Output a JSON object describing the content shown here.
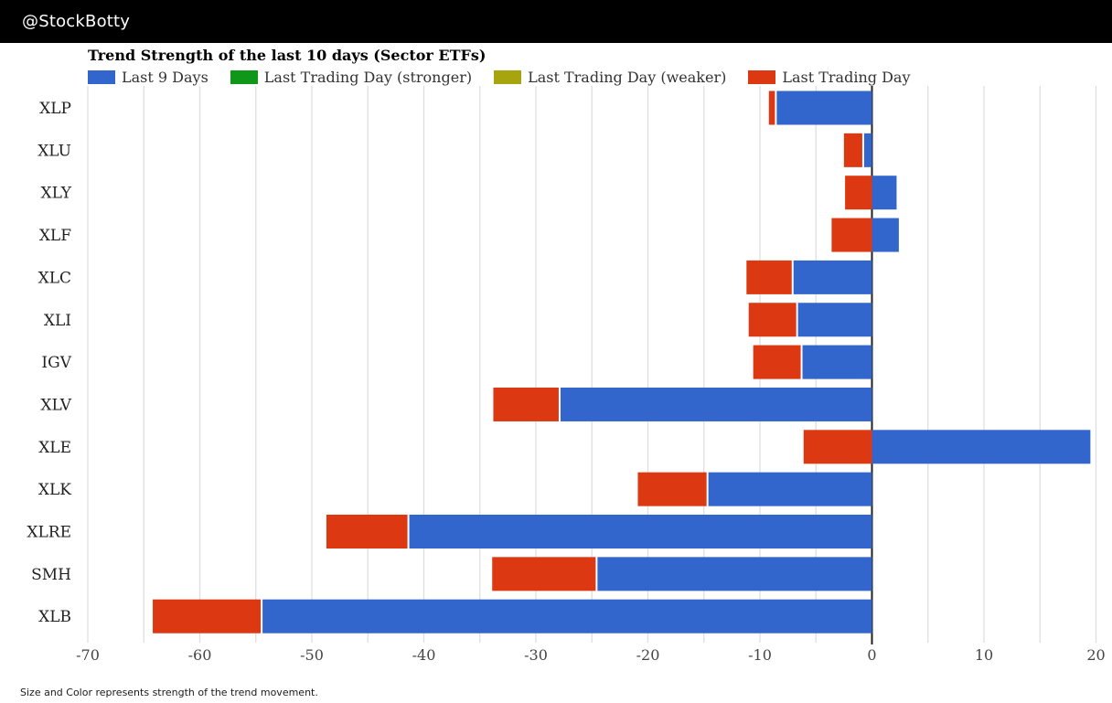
{
  "header": {
    "handle": "@StockBotty",
    "bg_color": "#000000",
    "text_color": "#ffffff"
  },
  "chart_data": {
    "type": "bar",
    "orientation": "horizontal",
    "title": "Trend Strength of the last 10 days (Sector ETFs)",
    "footnote": "Size and Color represents strength of the trend movement.",
    "xlim": [
      -70,
      20
    ],
    "x_tick_labels": [
      -70,
      -60,
      -50,
      -40,
      -30,
      -20,
      -10,
      0,
      10,
      20
    ],
    "gridline_step": 5,
    "grid_on": true,
    "legend_position": "top",
    "legend": [
      {
        "name": "last9",
        "label": "Last 9 Days",
        "color": "#3366cc"
      },
      {
        "name": "stronger",
        "label": "Last Trading Day (stronger)",
        "color": "#109618"
      },
      {
        "name": "weaker",
        "label": "Last Trading Day (weaker)",
        "color": "#a8a40e"
      },
      {
        "name": "lastday",
        "label": "Last Trading Day",
        "color": "#dc3912"
      }
    ],
    "categories": [
      "XLP",
      "XLU",
      "XLY",
      "XLF",
      "XLC",
      "XLI",
      "IGV",
      "XLV",
      "XLE",
      "XLK",
      "XLRE",
      "SMH",
      "XLB"
    ],
    "series": [
      {
        "label": "XLP",
        "last9": [
          -8.5,
          0
        ],
        "last_day": [
          -9.2,
          -8.5
        ]
      },
      {
        "label": "XLU",
        "last9": [
          -0.7,
          0
        ],
        "last_day": [
          -2.5,
          -0.7
        ]
      },
      {
        "label": "XLY",
        "last9": [
          0,
          2.2
        ],
        "last_day": [
          -2.4,
          0
        ]
      },
      {
        "label": "XLF",
        "last9": [
          0,
          2.4
        ],
        "last_day": [
          -3.6,
          0
        ]
      },
      {
        "label": "XLC",
        "last9": [
          -7.0,
          0
        ],
        "last_day": [
          -11.2,
          -7.0
        ]
      },
      {
        "label": "XLI",
        "last9": [
          -6.6,
          0
        ],
        "last_day": [
          -11.0,
          -6.6
        ]
      },
      {
        "label": "IGV",
        "last9": [
          -6.2,
          0
        ],
        "last_day": [
          -10.6,
          -6.2
        ]
      },
      {
        "label": "XLV",
        "last9": [
          -27.8,
          0
        ],
        "last_day": [
          -33.8,
          -27.8
        ]
      },
      {
        "label": "XLE",
        "last9": [
          0,
          19.5
        ],
        "last_day": [
          -6.1,
          0
        ]
      },
      {
        "label": "XLK",
        "last9": [
          -14.6,
          0
        ],
        "last_day": [
          -20.9,
          -14.6
        ]
      },
      {
        "label": "XLRE",
        "last9": [
          -41.3,
          0
        ],
        "last_day": [
          -48.7,
          -41.3
        ]
      },
      {
        "label": "SMH",
        "last9": [
          -24.5,
          0
        ],
        "last_day": [
          -33.9,
          -24.5
        ]
      },
      {
        "label": "XLB",
        "last9": [
          -54.4,
          0
        ],
        "last_day": [
          -64.2,
          -54.4
        ]
      }
    ],
    "colors": {
      "bar_blue": "#3366cc",
      "bar_red": "#dc3912",
      "grid": "#dedede",
      "zero_line": "#212121",
      "x_tick_text": "#454545",
      "y_label_text": "#222222"
    }
  }
}
